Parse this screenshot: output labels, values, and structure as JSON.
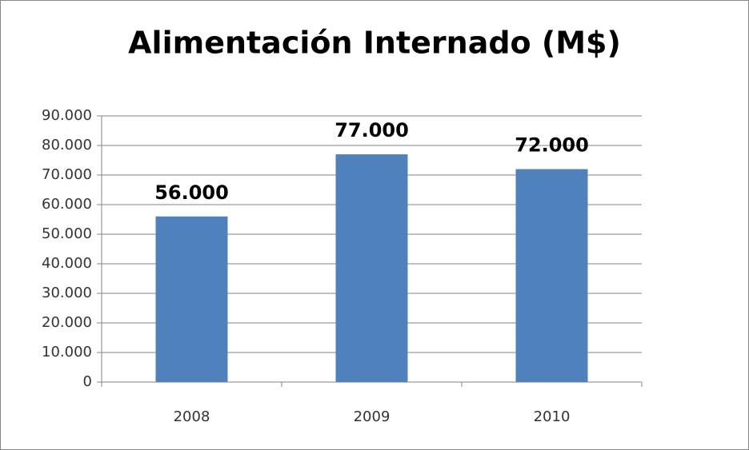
{
  "chart_data": {
    "type": "bar",
    "title": "Alimentación Internado (M$)",
    "categories": [
      "2008",
      "2009",
      "2010"
    ],
    "values": [
      56000,
      77000,
      72000
    ],
    "value_labels": [
      "56.000",
      "77.000",
      "72.000"
    ],
    "color": "#4f81bd",
    "ylim": [
      0,
      90000
    ],
    "yticks": [
      0,
      {
        "value": 10000,
        "label": "10.000"
      },
      {
        "value": 20000,
        "label": "20.000"
      },
      {
        "value": 30000,
        "label": "30.000"
      },
      {
        "value": 40000,
        "label": "40.000"
      },
      {
        "value": 50000,
        "label": "50.000"
      },
      {
        "value": 60000,
        "label": "60.000"
      },
      {
        "value": 70000,
        "label": "70.000"
      },
      {
        "value": 80000,
        "label": "80.000"
      },
      {
        "value": 90000,
        "label": "90.000"
      }
    ],
    "grid": true
  }
}
